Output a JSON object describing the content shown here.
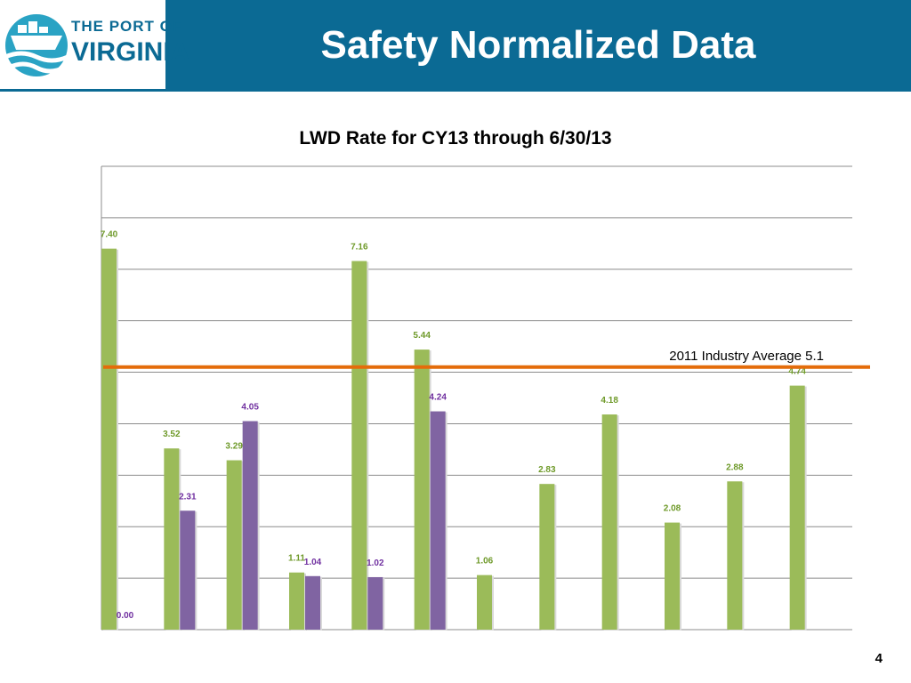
{
  "slide": {
    "title": "Safety Normalized Data",
    "page_number": "4",
    "logo": {
      "line1": "THE PORT OF",
      "line2": "VIRGINIA"
    }
  },
  "colors": {
    "header": "#0b6a94",
    "green": "#9bbb59",
    "purple": "#8064a2",
    "average_line": "#e46c0a",
    "green_label": "#6f9a2a",
    "purple_label": "#7030a0"
  },
  "chart_data": {
    "type": "bar",
    "title": "LWD Rate for CY13 through 6/30/13",
    "xlabel": "",
    "ylabel": "",
    "ylim": [
      0,
      9
    ],
    "grid": true,
    "categories": [
      "",
      "",
      "",
      "",
      "",
      "",
      "",
      "",
      "",
      "",
      "",
      ""
    ],
    "series": [
      {
        "values": [
          7.4,
          3.52,
          3.29,
          1.11,
          7.16,
          5.44,
          1.06,
          2.83,
          4.18,
          2.08,
          2.88,
          4.74
        ],
        "labels": [
          "7.40",
          "3.52",
          "3.29",
          "1.11",
          "7.16",
          "5.44",
          "1.06",
          "2.83",
          "4.18",
          "2.08",
          "2.88",
          "4.74"
        ]
      },
      {
        "values": [
          0.0,
          2.31,
          4.05,
          1.04,
          1.02,
          4.24,
          null,
          null,
          null,
          null,
          null,
          null
        ],
        "labels": [
          "0.00",
          "2.31",
          "4.05",
          "1.04",
          "1.02",
          "4.24",
          "",
          "",
          "",
          "",
          "",
          ""
        ]
      }
    ],
    "reference_line": {
      "value": 5.1,
      "label": "2011 Industry  Average 5.1"
    }
  }
}
